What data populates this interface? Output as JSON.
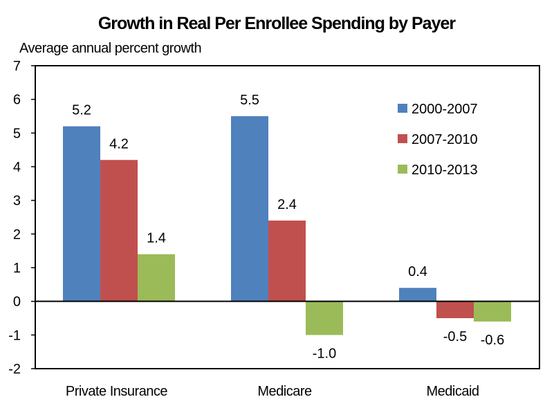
{
  "chart_data": {
    "type": "bar",
    "title": "Growth in Real Per Enrollee Spending by Payer",
    "ylabel": "Average annual percent growth",
    "xlabel": "",
    "categories": [
      "Private Insurance",
      "Medicare",
      "Medicaid"
    ],
    "series": [
      {
        "name": "2000-2007",
        "color": "#4F81BD",
        "values": [
          5.2,
          5.5,
          0.4
        ],
        "labels": [
          "5.2",
          "5.5",
          "0.4"
        ]
      },
      {
        "name": "2007-2010",
        "color": "#C0504D",
        "values": [
          4.2,
          2.4,
          -0.5
        ],
        "labels": [
          "4.2",
          "2.4",
          "-0.5"
        ]
      },
      {
        "name": "2010-2013",
        "color": "#9BBB59",
        "values": [
          1.4,
          -1.0,
          -0.6
        ],
        "labels": [
          "1.4",
          "-1.0",
          "-0.6"
        ]
      }
    ],
    "ylim": [
      -2,
      7
    ],
    "yticks": [
      7,
      6,
      5,
      4,
      3,
      2,
      1,
      0,
      -1,
      -2
    ],
    "grid": false,
    "legend": "top-right",
    "data_labels": true
  }
}
